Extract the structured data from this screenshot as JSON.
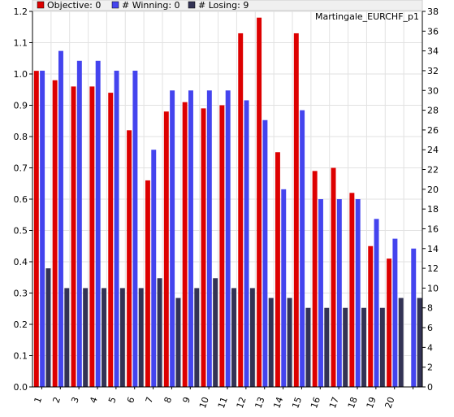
{
  "chart_data": {
    "type": "bar",
    "title": "Martingale_EURCHF_p1",
    "categories": [
      "1",
      "2",
      "3",
      "4",
      "5",
      "6",
      "7",
      "8",
      "9",
      "10",
      "11",
      "12",
      "13",
      "14",
      "15",
      "16",
      "17",
      "18",
      "19",
      "20",
      ""
    ],
    "y_left_ticks": [
      "0.0",
      "0.1",
      "0.2",
      "0.3",
      "0.4",
      "0.5",
      "0.6",
      "0.7",
      "0.8",
      "0.9",
      "1.0",
      "1.1",
      "1.2"
    ],
    "y_right_ticks": [
      "0",
      "2",
      "4",
      "6",
      "8",
      "10",
      "12",
      "14",
      "16",
      "18",
      "20",
      "22",
      "24",
      "26",
      "28",
      "30",
      "32",
      "34",
      "36",
      "38"
    ],
    "ylim_left": [
      0,
      1.2
    ],
    "ylim_right": [
      0,
      38
    ],
    "grid": true,
    "legend_position": "top",
    "series": [
      {
        "name": "Objective: 0",
        "axis": "left",
        "color": "#dd0000",
        "values": [
          1.01,
          0.98,
          0.96,
          0.96,
          0.94,
          0.82,
          0.66,
          0.88,
          0.91,
          0.89,
          0.9,
          1.13,
          1.18,
          0.75,
          1.13,
          0.69,
          0.7,
          0.62,
          0.45,
          0.41,
          null
        ]
      },
      {
        "name": "# Winning: 0",
        "axis": "right",
        "color": "#4444ee",
        "values": [
          32,
          34,
          33,
          33,
          32,
          32,
          24,
          30,
          30,
          30,
          30,
          29,
          27,
          20,
          28,
          19,
          19,
          19,
          17,
          15,
          14
        ]
      },
      {
        "name": "# Losing: 9",
        "axis": "right",
        "color": "#333355",
        "values": [
          12,
          10,
          10,
          10,
          10,
          10,
          11,
          9,
          10,
          11,
          10,
          10,
          9,
          9,
          8,
          8,
          8,
          8,
          8,
          9,
          9
        ]
      }
    ]
  }
}
